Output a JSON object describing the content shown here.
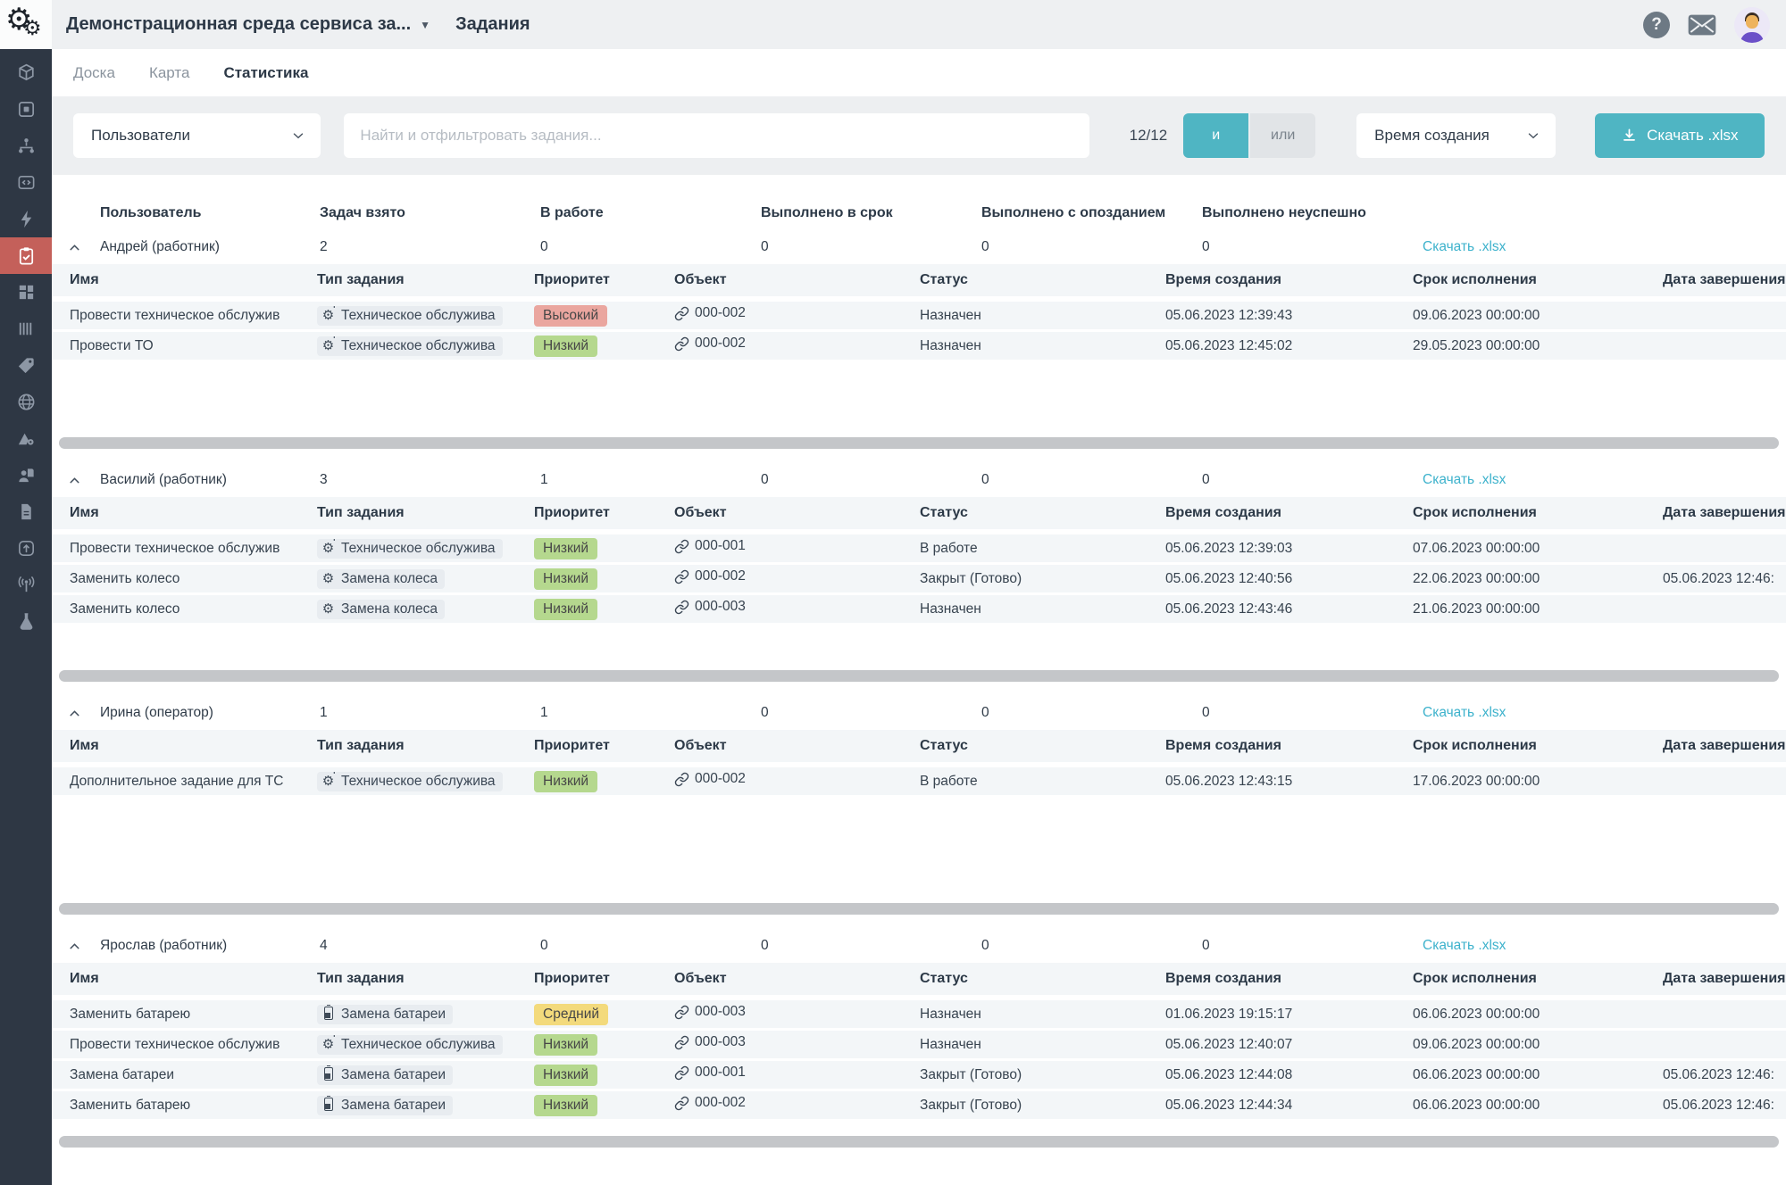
{
  "header": {
    "app_title": "Демонстрационная среда сервиса за...",
    "page_title": "Задания",
    "icons": [
      "gears-logo-icon",
      "help-icon",
      "mail-icon",
      "avatar"
    ]
  },
  "tabs": [
    {
      "label": "Доска",
      "active": false
    },
    {
      "label": "Карта",
      "active": false
    },
    {
      "label": "Статистика",
      "active": true
    }
  ],
  "filter_bar": {
    "user_filter_label": "Пользователи",
    "search_placeholder": "Найти и отфильтровать задания...",
    "counter": "12/12",
    "and_label": "и",
    "or_label": "или",
    "sort_label": "Время создания",
    "download_button": "Скачать .xlsx"
  },
  "summary_headers": [
    "Пользователь",
    "Задач взято",
    "В работе",
    "Выполнено в срок",
    "Выполнено с опозданием",
    "Выполнено неуспешно"
  ],
  "task_headers": [
    "Имя",
    "Тип задания",
    "Приоритет",
    "Объект",
    "Статус",
    "Время создания",
    "Срок исполнения",
    "Дата завершения"
  ],
  "group_download_label": "Скачать .xlsx",
  "groups": [
    {
      "user": "Андрей (работник)",
      "stats": [
        "2",
        "0",
        "0",
        "0",
        "0"
      ],
      "tasks": [
        {
          "name": "Провести техническое обслужив",
          "type": "Техническое обслужива",
          "type_icon": "gear-plus-icon",
          "priority": "Высокий",
          "priority_level": "high",
          "object": "000-002",
          "status": "Назначен",
          "created": "05.06.2023 12:39:43",
          "due": "09.06.2023 00:00:00",
          "completed": ""
        },
        {
          "name": "Провести ТО",
          "type": "Техническое обслужива",
          "type_icon": "gear-plus-icon",
          "priority": "Низкий",
          "priority_level": "low",
          "object": "000-002",
          "status": "Назначен",
          "created": "05.06.2023 12:45:02",
          "due": "29.05.2023 00:00:00",
          "completed": ""
        }
      ]
    },
    {
      "user": "Василий (работник)",
      "stats": [
        "3",
        "1",
        "0",
        "0",
        "0"
      ],
      "tasks": [
        {
          "name": "Провести техническое обслужив",
          "type": "Техническое обслужива",
          "type_icon": "gear-plus-icon",
          "priority": "Низкий",
          "priority_level": "low",
          "object": "000-001",
          "status": "В работе",
          "created": "05.06.2023 12:39:03",
          "due": "07.06.2023 00:00:00",
          "completed": ""
        },
        {
          "name": "Заменить колесо",
          "type": "Замена колеса",
          "type_icon": "gear-icon",
          "priority": "Низкий",
          "priority_level": "low",
          "object": "000-002",
          "status": "Закрыт (Готово)",
          "created": "05.06.2023 12:40:56",
          "due": "22.06.2023 00:00:00",
          "completed": "05.06.2023 12:46:"
        },
        {
          "name": "Заменить колесо",
          "type": "Замена колеса",
          "type_icon": "gear-icon",
          "priority": "Низкий",
          "priority_level": "low",
          "object": "000-003",
          "status": "Назначен",
          "created": "05.06.2023 12:43:46",
          "due": "21.06.2023 00:00:00",
          "completed": ""
        }
      ]
    },
    {
      "user": "Ирина (оператор)",
      "stats": [
        "1",
        "1",
        "0",
        "0",
        "0"
      ],
      "tasks": [
        {
          "name": "Дополнительное задание для ТС",
          "type": "Техническое обслужива",
          "type_icon": "gear-plus-icon",
          "priority": "Низкий",
          "priority_level": "low",
          "object": "000-002",
          "status": "В работе",
          "created": "05.06.2023 12:43:15",
          "due": "17.06.2023 00:00:00",
          "completed": ""
        }
      ]
    },
    {
      "user": "Ярослав (работник)",
      "stats": [
        "4",
        "0",
        "0",
        "0",
        "0"
      ],
      "tasks": [
        {
          "name": "Заменить батарею",
          "type": "Замена батареи",
          "type_icon": "battery-icon",
          "priority": "Средний",
          "priority_level": "medium",
          "object": "000-003",
          "status": "Назначен",
          "created": "01.06.2023 19:15:17",
          "due": "06.06.2023 00:00:00",
          "completed": ""
        },
        {
          "name": "Провести техническое обслужив",
          "type": "Техническое обслужива",
          "type_icon": "gear-plus-icon",
          "priority": "Низкий",
          "priority_level": "low",
          "object": "000-003",
          "status": "Назначен",
          "created": "05.06.2023 12:40:07",
          "due": "09.06.2023 00:00:00",
          "completed": ""
        },
        {
          "name": "Замена батареи",
          "type": "Замена батареи",
          "type_icon": "battery-icon",
          "priority": "Низкий",
          "priority_level": "low",
          "object": "000-001",
          "status": "Закрыт (Готово)",
          "created": "05.06.2023 12:44:08",
          "due": "06.06.2023 00:00:00",
          "completed": "05.06.2023 12:46:"
        },
        {
          "name": "Заменить батарею",
          "type": "Замена батареи",
          "type_icon": "battery-icon",
          "priority": "Низкий",
          "priority_level": "low",
          "object": "000-002",
          "status": "Закрыт (Готово)",
          "created": "05.06.2023 12:44:34",
          "due": "06.06.2023 00:00:00",
          "completed": "05.06.2023 12:46:"
        }
      ]
    }
  ],
  "sidebar": {
    "items": [
      {
        "icon": "cube-icon",
        "active": false
      },
      {
        "icon": "window-icon",
        "active": false
      },
      {
        "icon": "hierarchy-icon",
        "active": false
      },
      {
        "icon": "code-icon",
        "active": false
      },
      {
        "icon": "lightning-icon",
        "active": false
      },
      {
        "icon": "tasks-clipboard-icon",
        "active": true
      },
      {
        "icon": "blocks-icon",
        "active": false
      },
      {
        "icon": "columns-icon",
        "active": false
      },
      {
        "icon": "tag-icon",
        "active": false
      },
      {
        "icon": "globe-icon",
        "active": false
      },
      {
        "icon": "terrain-settings-icon",
        "active": false
      },
      {
        "icon": "user-document-icon",
        "active": false
      },
      {
        "icon": "document-icon",
        "active": false
      },
      {
        "icon": "upload-icon",
        "active": false
      },
      {
        "icon": "antenna-icon",
        "active": false
      },
      {
        "icon": "flask-icon",
        "active": false
      }
    ]
  },
  "colors": {
    "accent_teal": "#4fb5c3",
    "link_teal": "#3db2cc",
    "sidebar_bg": "#2e3744",
    "sidebar_active_bg": "#c4605a",
    "priority_high_bg": "#eaa69f",
    "priority_medium_bg": "#f3da7c",
    "priority_low_bg": "#b5d88e",
    "type_badge_bg": "#e8ecf0"
  }
}
